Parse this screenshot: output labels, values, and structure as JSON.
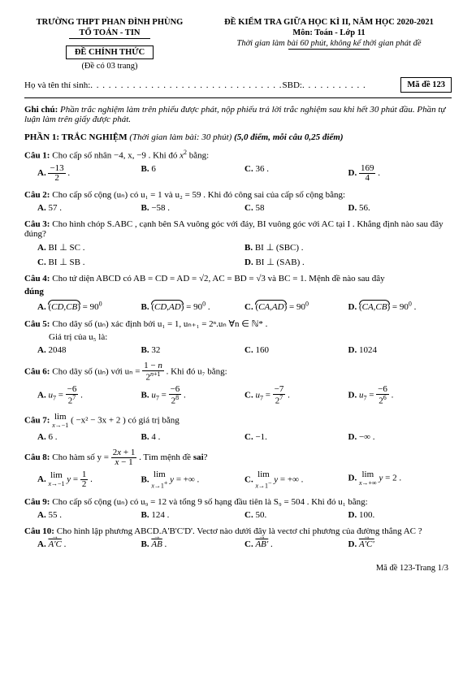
{
  "header": {
    "school": "TRƯỜNG THPT PHAN ĐÌNH PHÙNG",
    "dept": "TỔ TOÁN - TIN",
    "official": "ĐỀ CHÍNH THỨC",
    "pages_note": "(Đề có 03 trang)",
    "exam_title": "ĐỀ KIỂM TRA GIỮA HỌC KÌ II, NĂM HỌC 2020-2021",
    "subject": "Môn: Toán - Lớp 11",
    "time_note": "Thời gian làm bài 60 phút, không kể thời gian phát đề"
  },
  "name_row": {
    "label": "Họ và tên thí sinh:",
    "sbd": "SBD:",
    "code": "Mã đề 123"
  },
  "ghi_chu": {
    "label": "Ghi chú:",
    "text": "Phần trắc nghiệm làm trên phiếu được phát, nộp phiếu trả lời trắc nghiệm sau khi hết 30 phút đầu. Phần tự luận làm trên giấy được phát."
  },
  "section1": {
    "label": "PHẦN 1: TRẮC NGHIỆM",
    "note": "(Thời gian làm bài: 30 phút)",
    "pts": "(5,0 điểm, mỗi câu 0,25 điểm)"
  },
  "q1": {
    "label": "Câu 1:",
    "stem_a": "Cho cấp số nhân −4, x, −9 . Khi đó ",
    "stem_b": " bằng:",
    "oA": "A.",
    "oB": "B.",
    "oBv": "6",
    "oC": "C.",
    "oCv": "36 .",
    "oD": "D."
  },
  "q2": {
    "label": "Câu 2:",
    "stem": "Cho cấp số cộng (uₙ) có u₁ = 1 và u₂ = 59 . Khi đó công sai của cấp số cộng bằng:",
    "A": "A.",
    "Av": "57 .",
    "B": "B.",
    "Bv": "−58 .",
    "C": "C.",
    "Cv": "58",
    "D": "D.",
    "Dv": "56."
  },
  "q3": {
    "label": "Câu 3:",
    "stem": "Cho hình chóp S.ABC , cạnh bên SA vuông góc với đáy, BI vuông góc với AC tại I . Khẳng định nào sau đây đúng?",
    "A": "A.",
    "Av": "BI ⊥ SC .",
    "B": "B.",
    "Bv": "BI ⊥ (SBC) .",
    "C": "C.",
    "Cv": "BI ⊥ SB .",
    "D": "D.",
    "Dv": "BI ⊥ (SAB) ."
  },
  "q4": {
    "label": "Câu 4:",
    "stem": "Cho tứ diện ABCD có AB = CD = AD = √2, AC = BD = √3  và BC = 1. Mệnh đề nào sau đây",
    "dung": "đúng",
    "A": "A.",
    "B": "B.",
    "C": "C.",
    "D": "D."
  },
  "q5": {
    "label": "Câu 5:",
    "stem": "Cho dãy số (uₙ) xác định bởi    u₁ = 1, uₙ₊₁ = 2ⁿ.uₙ   ∀n ∈ ℕ* .",
    "gt": "Giá trị của u₅ là:",
    "A": "A.",
    "Av": "2048",
    "B": "B.",
    "Bv": "32",
    "C": "C.",
    "Cv": "160",
    "D": "D.",
    "Dv": "1024"
  },
  "q6": {
    "label": "Câu 6:",
    "stem_a": "Cho dãy số (uₙ) với uₙ = ",
    "stem_b": " . Khi đó u₇ bằng:",
    "A": "A.",
    "B": "B.",
    "C": "C.",
    "D": "D."
  },
  "q7": {
    "label": "Câu 7:",
    "stem": "( −x² − 3x + 2 )  có giá trị bằng",
    "A": "A.",
    "Av": "6 .",
    "B": "B.",
    "Bv": "4 .",
    "C": "C.",
    "Cv": "−1.",
    "D": "D.",
    "Dv": "−∞ ."
  },
  "q8": {
    "label": "Câu 8:",
    "stem_a": "Cho hàm số  y = ",
    "stem_b": " . Tìm mệnh đề ",
    "sai": "sai",
    "A": "A.",
    "B": "B.",
    "C": "C.",
    "D": "D."
  },
  "q9": {
    "label": "Câu 9:",
    "stem": "Cho cấp số cộng (uₙ) có u₉ = 12 và tổng 9 số hạng đầu tiên là S₉ = 504 . Khi đó u₁ bằng:",
    "A": "A.",
    "Av": "55 .",
    "B": "B.",
    "Bv": "124 .",
    "C": "C.",
    "Cv": "50.",
    "D": "D.",
    "Dv": "100."
  },
  "q10": {
    "label": "Câu 10:",
    "stem": "Cho hình lập phương ABCD.A'B'C'D'. Vectơ nào dưới đây là vectơ chỉ phương của đường thẳng AC ?",
    "A": "A.",
    "B": "B.",
    "C": "C.",
    "D": "D."
  },
  "footer": "Mã đề 123-Trang 1/3"
}
